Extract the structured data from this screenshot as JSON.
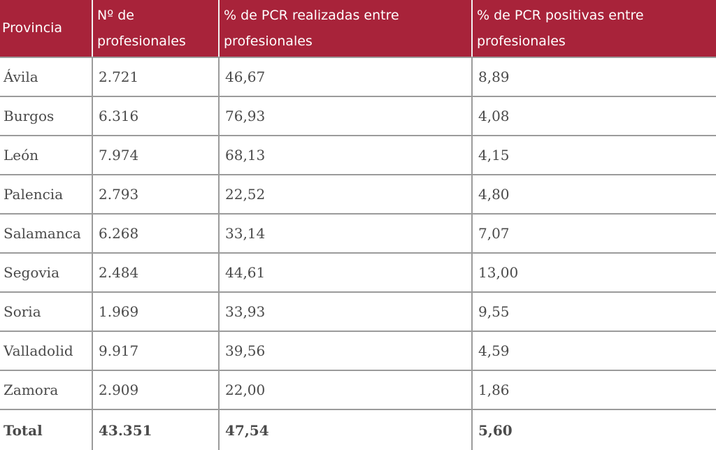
{
  "table": {
    "header_color": "#a8233a",
    "headers": [
      "Provincia",
      "Nº de profesionales",
      "% de PCR realizadas entre profesionales",
      "% de PCR positivas entre profesionales"
    ],
    "rows": [
      [
        "Ávila",
        "2.721",
        "46,67",
        "8,89"
      ],
      [
        "Burgos",
        "6.316",
        "76,93",
        "4,08"
      ],
      [
        "León",
        "7.974",
        "68,13",
        "4,15"
      ],
      [
        "Palencia",
        "2.793",
        "22,52",
        "4,80"
      ],
      [
        "Salamanca",
        "6.268",
        "33,14",
        "7,07"
      ],
      [
        "Segovia",
        "2.484",
        "44,61",
        "13,00"
      ],
      [
        "Soria",
        "1.969",
        "33,93",
        "9,55"
      ],
      [
        "Valladolid",
        "9.917",
        "39,56",
        "4,59"
      ],
      [
        "Zamora",
        "2.909",
        "22,00",
        "1,86"
      ]
    ],
    "total": [
      "Total",
      "43.351",
      "47,54",
      "5,60"
    ]
  }
}
